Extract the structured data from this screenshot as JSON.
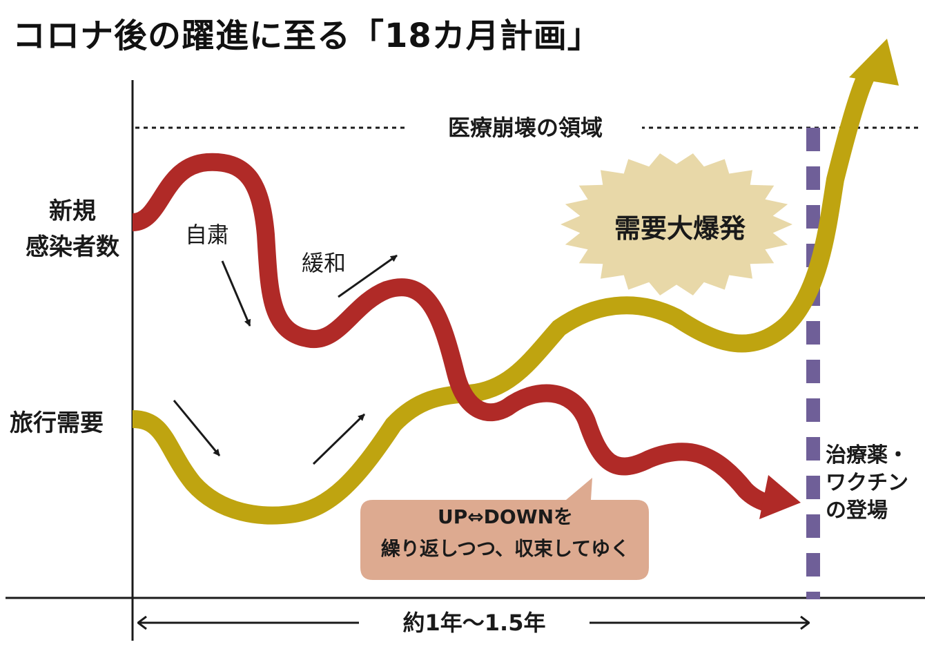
{
  "title": "コロナ後の躍進に至る「18カ月計画」",
  "y_labels": {
    "cases_line1": "新規",
    "cases_line2": "感染者数",
    "travel": "旅行需要"
  },
  "zone": {
    "label": "医療崩壊の領域"
  },
  "notes": {
    "restraint": "自粛",
    "relaxation": "緩和"
  },
  "burst": {
    "label": "需要大爆発"
  },
  "bubble": {
    "line1": "UP⇔DOWNを",
    "line2": "繰り返しつつ、収束してゆく"
  },
  "event": {
    "line1": "治療薬・",
    "line2": "ワクチン",
    "line3": "の登場"
  },
  "period": {
    "label": "約1年〜1.5年"
  },
  "colors": {
    "cases_curve": "#B02A27",
    "travel_curve": "#BFA410",
    "burst_fill": "#E8D8A8",
    "bubble_fill": "#DDAA90",
    "event_line": "#6F5F98",
    "axis": "#1a1a1a"
  }
}
